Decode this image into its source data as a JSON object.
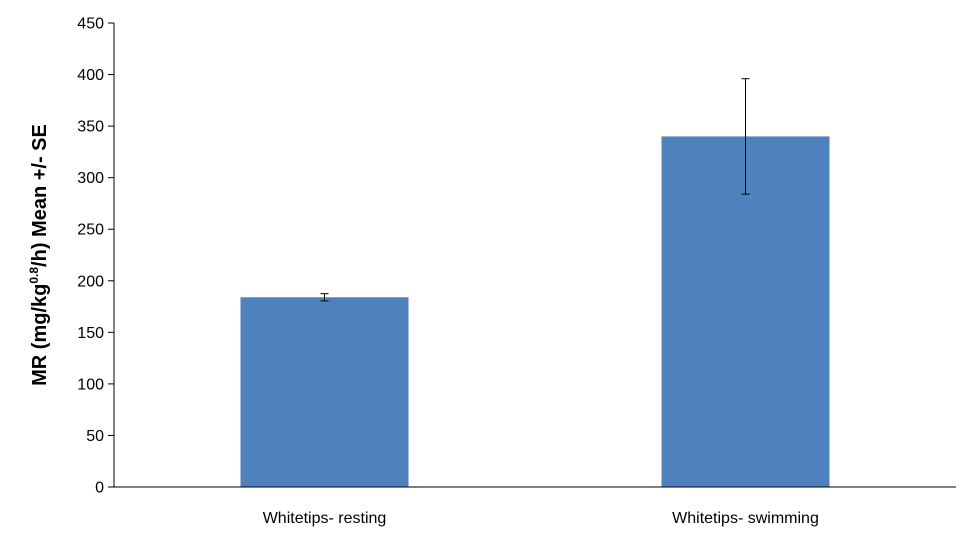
{
  "chart_data": {
    "type": "bar",
    "categories": [
      "Whitetips- resting",
      "Whitetips- swimming"
    ],
    "values": [
      184,
      340
    ],
    "error": [
      3.5,
      56
    ],
    "ylim": [
      0,
      450
    ],
    "yticks": [
      0,
      50,
      100,
      150,
      200,
      250,
      300,
      350,
      400,
      450
    ],
    "ylabel": {
      "prefix": "MR (mg/kg",
      "superscript": "0.8",
      "suffix": "/h) Mean +/- SE"
    },
    "xlabel": "",
    "title": "",
    "grid": false,
    "legend": "none",
    "bar_color": "#4f81bd"
  }
}
